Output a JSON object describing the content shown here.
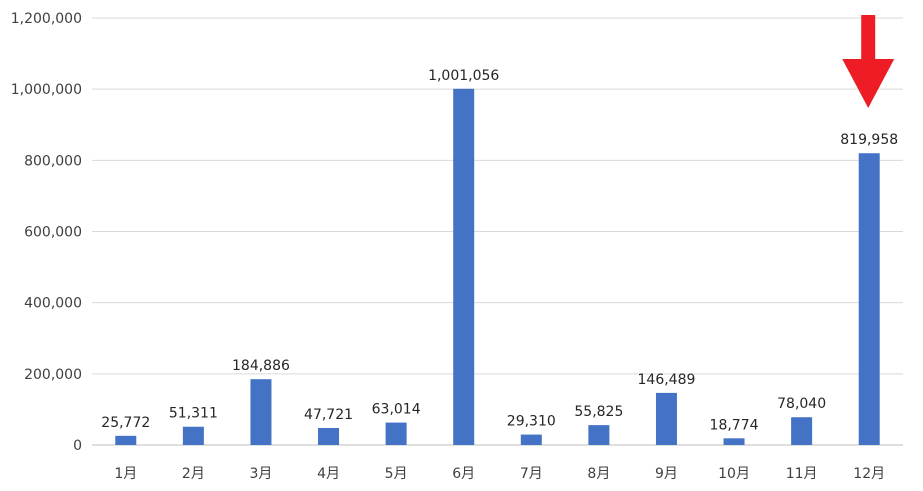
{
  "chart_data": {
    "type": "bar",
    "categories": [
      "1月",
      "2月",
      "3月",
      "4月",
      "5月",
      "6月",
      "7月",
      "8月",
      "9月",
      "10月",
      "11月",
      "12月"
    ],
    "values": [
      25772,
      51311,
      184886,
      47721,
      63014,
      1001056,
      29310,
      55825,
      146489,
      18774,
      78040,
      819958
    ],
    "data_labels": [
      "25,772",
      "51,311",
      "184,886",
      "47,721",
      "63,014",
      "1,001,056",
      "29,310",
      "55,825",
      "146,489",
      "18,774",
      "78,040",
      "819,958"
    ],
    "y_ticks": [
      "0",
      "200,000",
      "400,000",
      "600,000",
      "800,000",
      "1,000,000",
      "1,200,000"
    ],
    "y_tick_values": [
      0,
      200000,
      400000,
      600000,
      800000,
      1000000,
      1200000
    ],
    "ylim": [
      0,
      1200000
    ],
    "grid": true,
    "legend": "none",
    "bar_color": "#4472C4",
    "annotation": {
      "type": "arrow",
      "direction": "down",
      "target_category": "12月",
      "color": "#EE1C25"
    }
  }
}
